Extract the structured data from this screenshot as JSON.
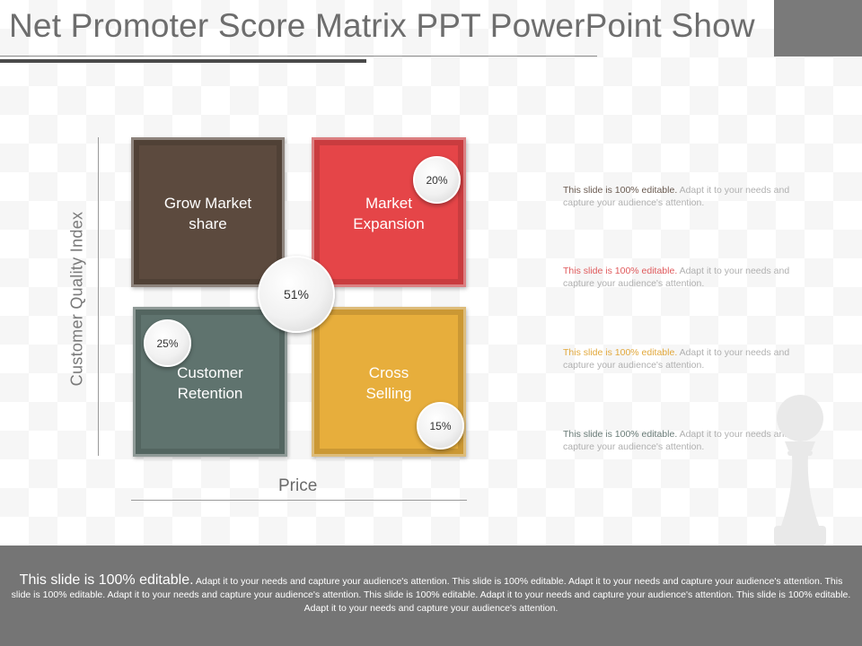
{
  "slide": {
    "title": "Net Promoter Score Matrix PPT PowerPoint Show"
  },
  "diagram": {
    "y_axis_label": "Customer Quality Index",
    "x_axis_label": "Price",
    "center_value": "51%",
    "quadrants": [
      {
        "label_line1": "Grow Market",
        "label_line2": "share",
        "color": "#5c4a3e"
      },
      {
        "label_line1": "Market",
        "label_line2": "Expansion",
        "color": "#e54548",
        "value": "20%"
      },
      {
        "label_line1": "Customer",
        "label_line2": "Retention",
        "color": "#5f736e",
        "value": "25%"
      },
      {
        "label_line1": "Cross",
        "label_line2": "Selling",
        "color": "#e7ae3c",
        "value": "15%"
      }
    ]
  },
  "notes": [
    {
      "lead": "This slide is 100% editable.",
      "body": " Adapt it to your needs and capture your audience's attention.",
      "lead_color": "#6a5a50"
    },
    {
      "lead": "This slide is 100% editable.",
      "body": " Adapt it to your needs and capture your audience's attention.",
      "lead_color": "#e05a5c"
    },
    {
      "lead": "This slide is 100% editable.",
      "body": " Adapt it to your needs and capture your audience's attention.",
      "lead_color": "#e2a83c"
    },
    {
      "lead": "This slide is 100% editable.",
      "body": " Adapt it to your needs and capture your audience's attention.",
      "lead_color": "#6a7c78"
    }
  ],
  "footer": {
    "lead": "This slide is 100% editable.",
    "body": " Adapt it to your needs and capture your audience's attention. This slide is 100% editable. Adapt it to your needs and capture your audience's attention. This slide is 100% editable. Adapt it to your needs and capture your audience's attention. This slide is 100% editable. Adapt it to your needs and capture your audience's attention. This slide is 100% editable. Adapt it to your needs and capture your audience's attention."
  },
  "icons": {
    "decoration": "chess-pawn-icon"
  }
}
